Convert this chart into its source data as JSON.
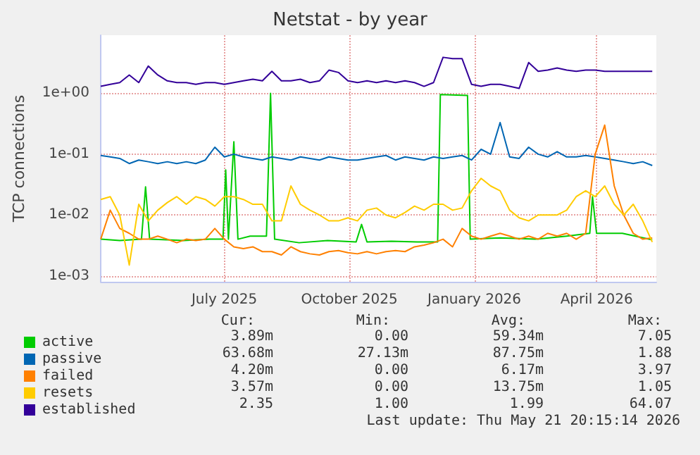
{
  "chart_data": {
    "type": "line",
    "title": "Netstat - by year",
    "ylabel": "TCP connections",
    "log": "y",
    "grid": true,
    "legend": "bottom left",
    "marker": "none",
    "line_style": "solid",
    "x": [
      "2025-04-01",
      "2025-04-08",
      "2025-04-15",
      "2025-04-22",
      "2025-04-29",
      "2025-05-06",
      "2025-05-13",
      "2025-05-20",
      "2025-05-27",
      "2025-06-03",
      "2025-06-10",
      "2025-06-17",
      "2025-06-24",
      "2025-07-01",
      "2025-07-08",
      "2025-07-15",
      "2025-07-22",
      "2025-07-29",
      "2025-08-05",
      "2025-08-12",
      "2025-08-19",
      "2025-08-26",
      "2025-09-02",
      "2025-09-09",
      "2025-09-16",
      "2025-09-23",
      "2025-09-30",
      "2025-10-07",
      "2025-10-14",
      "2025-10-21",
      "2025-10-28",
      "2025-11-04",
      "2025-11-11",
      "2025-11-18",
      "2025-11-25",
      "2025-12-02",
      "2025-12-09",
      "2025-12-16",
      "2025-12-23",
      "2025-12-30",
      "2026-01-06",
      "2026-01-13",
      "2026-01-20",
      "2026-01-27",
      "2026-02-03",
      "2026-02-10",
      "2026-02-17",
      "2026-02-24",
      "2026-03-03",
      "2026-03-10",
      "2026-03-17",
      "2026-03-24",
      "2026-03-31",
      "2026-04-07",
      "2026-04-14",
      "2026-04-21",
      "2026-04-28",
      "2026-05-05",
      "2026-05-12"
    ],
    "xlim": [
      "2025-04-01",
      "2026-05-15"
    ],
    "xticks": [
      {
        "value": "2025-07-01",
        "label": "July 2025"
      },
      {
        "value": "2025-10-01",
        "label": "October 2025"
      },
      {
        "value": "2026-01-01",
        "label": "January 2026"
      },
      {
        "value": "2026-04-01",
        "label": "April 2026"
      }
    ],
    "ylim": [
      0.0008,
      9
    ],
    "yticks": [
      {
        "value": 0.001,
        "label": "1e-03"
      },
      {
        "value": 0.01,
        "label": "1e-02"
      },
      {
        "value": 0.1,
        "label": "1e-01"
      },
      {
        "value": 1,
        "label": "1e+00"
      }
    ],
    "series": [
      {
        "name": "active",
        "color": "#00cc00",
        "x": [
          "2025-04-01",
          "2025-04-15",
          "2025-05-01",
          "2025-05-04",
          "2025-05-07",
          "2025-06-01",
          "2025-06-20",
          "2025-06-30",
          "2025-07-02",
          "2025-07-04",
          "2025-07-08",
          "2025-07-11",
          "2025-07-20",
          "2025-08-01",
          "2025-08-04",
          "2025-08-07",
          "2025-08-25",
          "2025-09-15",
          "2025-10-06",
          "2025-10-10",
          "2025-10-14",
          "2025-11-01",
          "2025-11-20",
          "2025-12-05",
          "2025-12-07",
          "2025-12-27",
          "2025-12-29",
          "2026-01-20",
          "2026-02-15",
          "2026-03-10",
          "2026-03-27",
          "2026-03-29",
          "2026-04-01",
          "2026-04-20",
          "2026-05-12"
        ],
        "values": [
          0.004,
          0.0038,
          0.004,
          0.029,
          0.004,
          0.0038,
          0.004,
          0.004,
          0.055,
          0.004,
          0.16,
          0.004,
          0.0045,
          0.0045,
          1.0,
          0.004,
          0.0035,
          0.0038,
          0.0036,
          0.007,
          0.0036,
          0.0037,
          0.0036,
          0.0036,
          0.95,
          0.92,
          0.004,
          0.0042,
          0.004,
          0.0045,
          0.005,
          0.02,
          0.005,
          0.005,
          0.0039
        ]
      },
      {
        "name": "passive",
        "color": "#0066b3",
        "values": [
          0.095,
          0.09,
          0.085,
          0.07,
          0.08,
          0.075,
          0.07,
          0.075,
          0.07,
          0.075,
          0.07,
          0.08,
          0.13,
          0.09,
          0.1,
          0.09,
          0.085,
          0.08,
          0.09,
          0.085,
          0.08,
          0.09,
          0.085,
          0.08,
          0.09,
          0.085,
          0.08,
          0.08,
          0.085,
          0.09,
          0.095,
          0.08,
          0.09,
          0.085,
          0.08,
          0.09,
          0.085,
          0.09,
          0.095,
          0.08,
          0.12,
          0.1,
          0.33,
          0.09,
          0.085,
          0.13,
          0.1,
          0.09,
          0.11,
          0.09,
          0.09,
          0.095,
          0.09,
          0.085,
          0.08,
          0.075,
          0.07,
          0.075,
          0.065
        ]
      },
      {
        "name": "failed",
        "color": "#ff8000",
        "values": [
          0.004,
          0.012,
          0.006,
          0.005,
          0.004,
          0.004,
          0.0045,
          0.004,
          0.0035,
          0.004,
          0.0038,
          0.004,
          0.006,
          0.004,
          0.003,
          0.0028,
          0.003,
          0.0025,
          0.0025,
          0.0022,
          0.003,
          0.0025,
          0.0023,
          0.0022,
          0.0025,
          0.0026,
          0.0024,
          0.0023,
          0.0025,
          0.0023,
          0.0025,
          0.0026,
          0.0025,
          0.003,
          0.0032,
          0.0035,
          0.004,
          0.003,
          0.006,
          0.0045,
          0.004,
          0.0045,
          0.005,
          0.0045,
          0.004,
          0.0045,
          0.004,
          0.005,
          0.0045,
          0.005,
          0.004,
          0.005,
          0.1,
          0.3,
          0.03,
          0.01,
          0.005,
          0.004,
          0.0042
        ]
      },
      {
        "name": "resets",
        "color": "#ffcc00",
        "values": [
          0.018,
          0.02,
          0.01,
          0.0015,
          0.015,
          0.008,
          0.012,
          0.016,
          0.02,
          0.015,
          0.02,
          0.018,
          0.014,
          0.02,
          0.02,
          0.018,
          0.015,
          0.015,
          0.008,
          0.008,
          0.03,
          0.015,
          0.012,
          0.01,
          0.008,
          0.008,
          0.009,
          0.008,
          0.012,
          0.013,
          0.01,
          0.009,
          0.011,
          0.014,
          0.012,
          0.015,
          0.015,
          0.012,
          0.013,
          0.025,
          0.04,
          0.03,
          0.025,
          0.012,
          0.009,
          0.008,
          0.01,
          0.01,
          0.01,
          0.012,
          0.02,
          0.025,
          0.02,
          0.03,
          0.015,
          0.01,
          0.015,
          0.008,
          0.0036
        ]
      },
      {
        "name": "established",
        "color": "#330099",
        "values": [
          1.3,
          1.4,
          1.5,
          2.0,
          1.5,
          2.8,
          2.0,
          1.6,
          1.5,
          1.5,
          1.4,
          1.5,
          1.5,
          1.4,
          1.5,
          1.6,
          1.7,
          1.6,
          2.3,
          1.6,
          1.6,
          1.7,
          1.5,
          1.6,
          2.4,
          2.2,
          1.6,
          1.5,
          1.6,
          1.5,
          1.6,
          1.5,
          1.6,
          1.5,
          1.3,
          1.5,
          3.9,
          3.7,
          3.7,
          1.4,
          1.3,
          1.4,
          1.4,
          1.3,
          1.2,
          3.2,
          2.3,
          2.4,
          2.6,
          2.4,
          2.3,
          2.4,
          2.4,
          2.3,
          2.3,
          2.3,
          2.3,
          2.3,
          2.3
        ]
      }
    ],
    "annotations": [
      "Cur:",
      "Min:",
      "Avg:",
      "Max:",
      "3.89m",
      "0.00",
      "59.34m",
      "7.05",
      "63.68m",
      "27.13m",
      "87.75m",
      "1.88",
      "4.20m",
      "0.00",
      "6.17m",
      "3.97",
      "3.57m",
      "0.00",
      "13.75m",
      "1.05",
      "2.35",
      "1.00",
      "1.99",
      "64.07",
      "Last update: Thu May 21 20:15:14 2026"
    ]
  }
}
